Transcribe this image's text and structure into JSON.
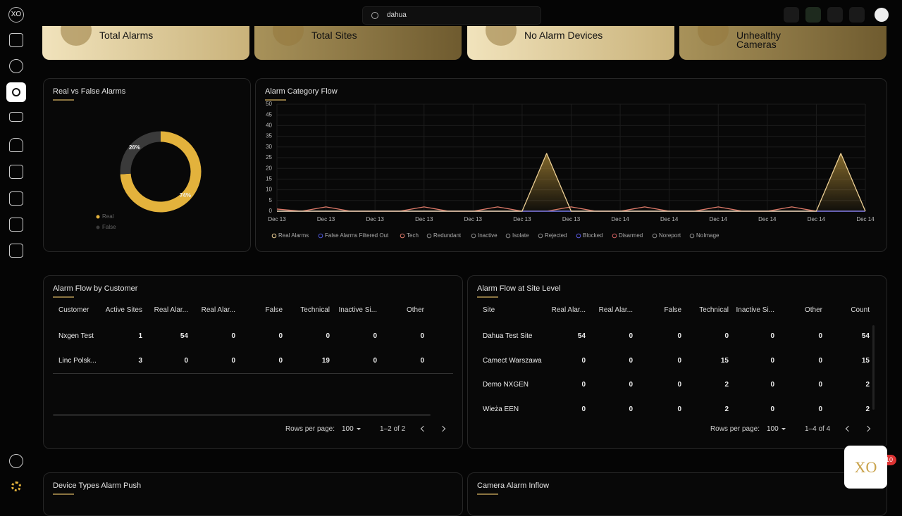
{
  "header": {
    "logo": "XO",
    "search": "dahua"
  },
  "stat_cards": [
    "Total Alarms",
    "Total Sites",
    "No Alarm Devices",
    "Unhealthy Cameras"
  ],
  "chart_data": [
    {
      "type": "pie",
      "title": "Real vs False Alarms",
      "categories": [
        "Real",
        "False"
      ],
      "values": [
        74,
        26
      ],
      "value_labels": [
        "74%",
        "26%"
      ],
      "colors": [
        "#e3b23c",
        "#3a3a3a"
      ]
    },
    {
      "type": "line",
      "title": "Alarm Category Flow",
      "x": [
        "Dec 13",
        null,
        "Dec 13",
        null,
        "Dec 13",
        null,
        "Dec 13",
        null,
        "Dec 13",
        null,
        "Dec 13",
        null,
        "Dec 13",
        null,
        "Dec 14",
        null,
        "Dec 14",
        null,
        "Dec 14",
        null,
        "Dec 14",
        null,
        "Dec 14",
        null,
        "Dec 14"
      ],
      "ylim": [
        0,
        50
      ],
      "yticks": [
        0,
        5,
        10,
        15,
        20,
        25,
        30,
        35,
        40,
        45,
        50
      ],
      "grid": true,
      "series": [
        {
          "name": "Real Alarms",
          "color": "#eccf95",
          "values": [
            0,
            0,
            0,
            0,
            0,
            0,
            0,
            0,
            0,
            0,
            0,
            27,
            0,
            0,
            0,
            0,
            0,
            0,
            0,
            0,
            0,
            0,
            0,
            27,
            0
          ]
        },
        {
          "name": "False Alarms Filtered Out",
          "color": "#4b55d6",
          "values": [
            0,
            0,
            0,
            0,
            0,
            0,
            0,
            0,
            0,
            0,
            0,
            0,
            0,
            0,
            0,
            0,
            0,
            0,
            0,
            0,
            0,
            0,
            0,
            0,
            0
          ]
        },
        {
          "name": "Tech",
          "color": "#e07b6a",
          "values": [
            1,
            0,
            2,
            0,
            0,
            0,
            2,
            0,
            0,
            2,
            0,
            0,
            2,
            0,
            0,
            2,
            0,
            0,
            2,
            0,
            0,
            2,
            0,
            0,
            0
          ]
        },
        {
          "name": "Redundant",
          "color": "#888888",
          "values": [
            0,
            0,
            0,
            0,
            0,
            0,
            0,
            0,
            0,
            0,
            0,
            0,
            0,
            0,
            0,
            0,
            0,
            0,
            0,
            0,
            0,
            0,
            0,
            0,
            0
          ]
        },
        {
          "name": "Inactive",
          "color": "#888888",
          "values": [
            0,
            0,
            0,
            0,
            0,
            0,
            0,
            0,
            0,
            0,
            0,
            0,
            0,
            0,
            0,
            0,
            0,
            0,
            0,
            0,
            0,
            0,
            0,
            0,
            0
          ]
        },
        {
          "name": "Isolate",
          "color": "#888888",
          "values": [
            0,
            0,
            0,
            0,
            0,
            0,
            0,
            0,
            0,
            0,
            0,
            0,
            0,
            0,
            0,
            0,
            0,
            0,
            0,
            0,
            0,
            0,
            0,
            0,
            0
          ]
        },
        {
          "name": "Rejected",
          "color": "#888888",
          "values": [
            0,
            0,
            0,
            0,
            0,
            0,
            0,
            0,
            0,
            0,
            0,
            0,
            0,
            0,
            0,
            0,
            0,
            0,
            0,
            0,
            0,
            0,
            0,
            0,
            0
          ]
        },
        {
          "name": "Blocked",
          "color": "#5a5ae0",
          "values": [
            0,
            0,
            0,
            0,
            0,
            0,
            0,
            0,
            0,
            0,
            0,
            0,
            0,
            0,
            0,
            0,
            0,
            0,
            0,
            0,
            0,
            0,
            0,
            0,
            0
          ]
        },
        {
          "name": "Disarmed",
          "color": "#d06060",
          "values": [
            0,
            0,
            0,
            0,
            0,
            0,
            0,
            0,
            0,
            0,
            0,
            0,
            0,
            0,
            0,
            0,
            0,
            0,
            0,
            0,
            0,
            0,
            0,
            0,
            0
          ]
        },
        {
          "name": "Noreport",
          "color": "#888888",
          "values": [
            0,
            0,
            0,
            0,
            0,
            0,
            0,
            0,
            0,
            0,
            0,
            0,
            0,
            0,
            0,
            0,
            0,
            0,
            0,
            0,
            0,
            0,
            0,
            0,
            0
          ]
        },
        {
          "name": "NoImage",
          "color": "#888888",
          "values": [
            0,
            0,
            0,
            0,
            0,
            0,
            0,
            0,
            0,
            0,
            0,
            0,
            0,
            0,
            0,
            0,
            0,
            0,
            0,
            0,
            0,
            0,
            0,
            0,
            0
          ]
        }
      ]
    }
  ],
  "tables": [
    {
      "title": "Alarm Flow by Customer",
      "columns": [
        "Customer",
        "Active Sites",
        "Real Alar...",
        "Real Alar...",
        "False",
        "Technical",
        "Inactive Si...",
        "Other"
      ],
      "rows": [
        [
          "Nxgen Test",
          1,
          54,
          0,
          0,
          0,
          0,
          0
        ],
        [
          "Linc Polsk...",
          3,
          0,
          0,
          0,
          19,
          0,
          0
        ]
      ],
      "rows_per_page_label": "Rows per page:",
      "rows_per_page": 100,
      "range": "1–2 of 2"
    },
    {
      "title": "Alarm Flow at Site Level",
      "columns": [
        "Site",
        "Real Alar...",
        "Real Alar...",
        "False",
        "Technical",
        "Inactive Si...",
        "Other",
        "Count"
      ],
      "rows": [
        [
          "Dahua Test Site",
          54,
          0,
          0,
          0,
          0,
          0,
          54
        ],
        [
          "Camect Warszawa",
          0,
          0,
          0,
          15,
          0,
          0,
          15
        ],
        [
          "Demo NXGEN",
          0,
          0,
          0,
          2,
          0,
          0,
          2
        ],
        [
          "Wieża EEN",
          0,
          0,
          0,
          2,
          0,
          0,
          2
        ]
      ],
      "rows_per_page_label": "Rows per page:",
      "rows_per_page": 100,
      "range": "1–4 of 4"
    }
  ],
  "panels": [
    "Device Types Alarm Push",
    "Camera Alarm Inflow"
  ],
  "widget": {
    "logo": "XO",
    "badge": "10"
  }
}
